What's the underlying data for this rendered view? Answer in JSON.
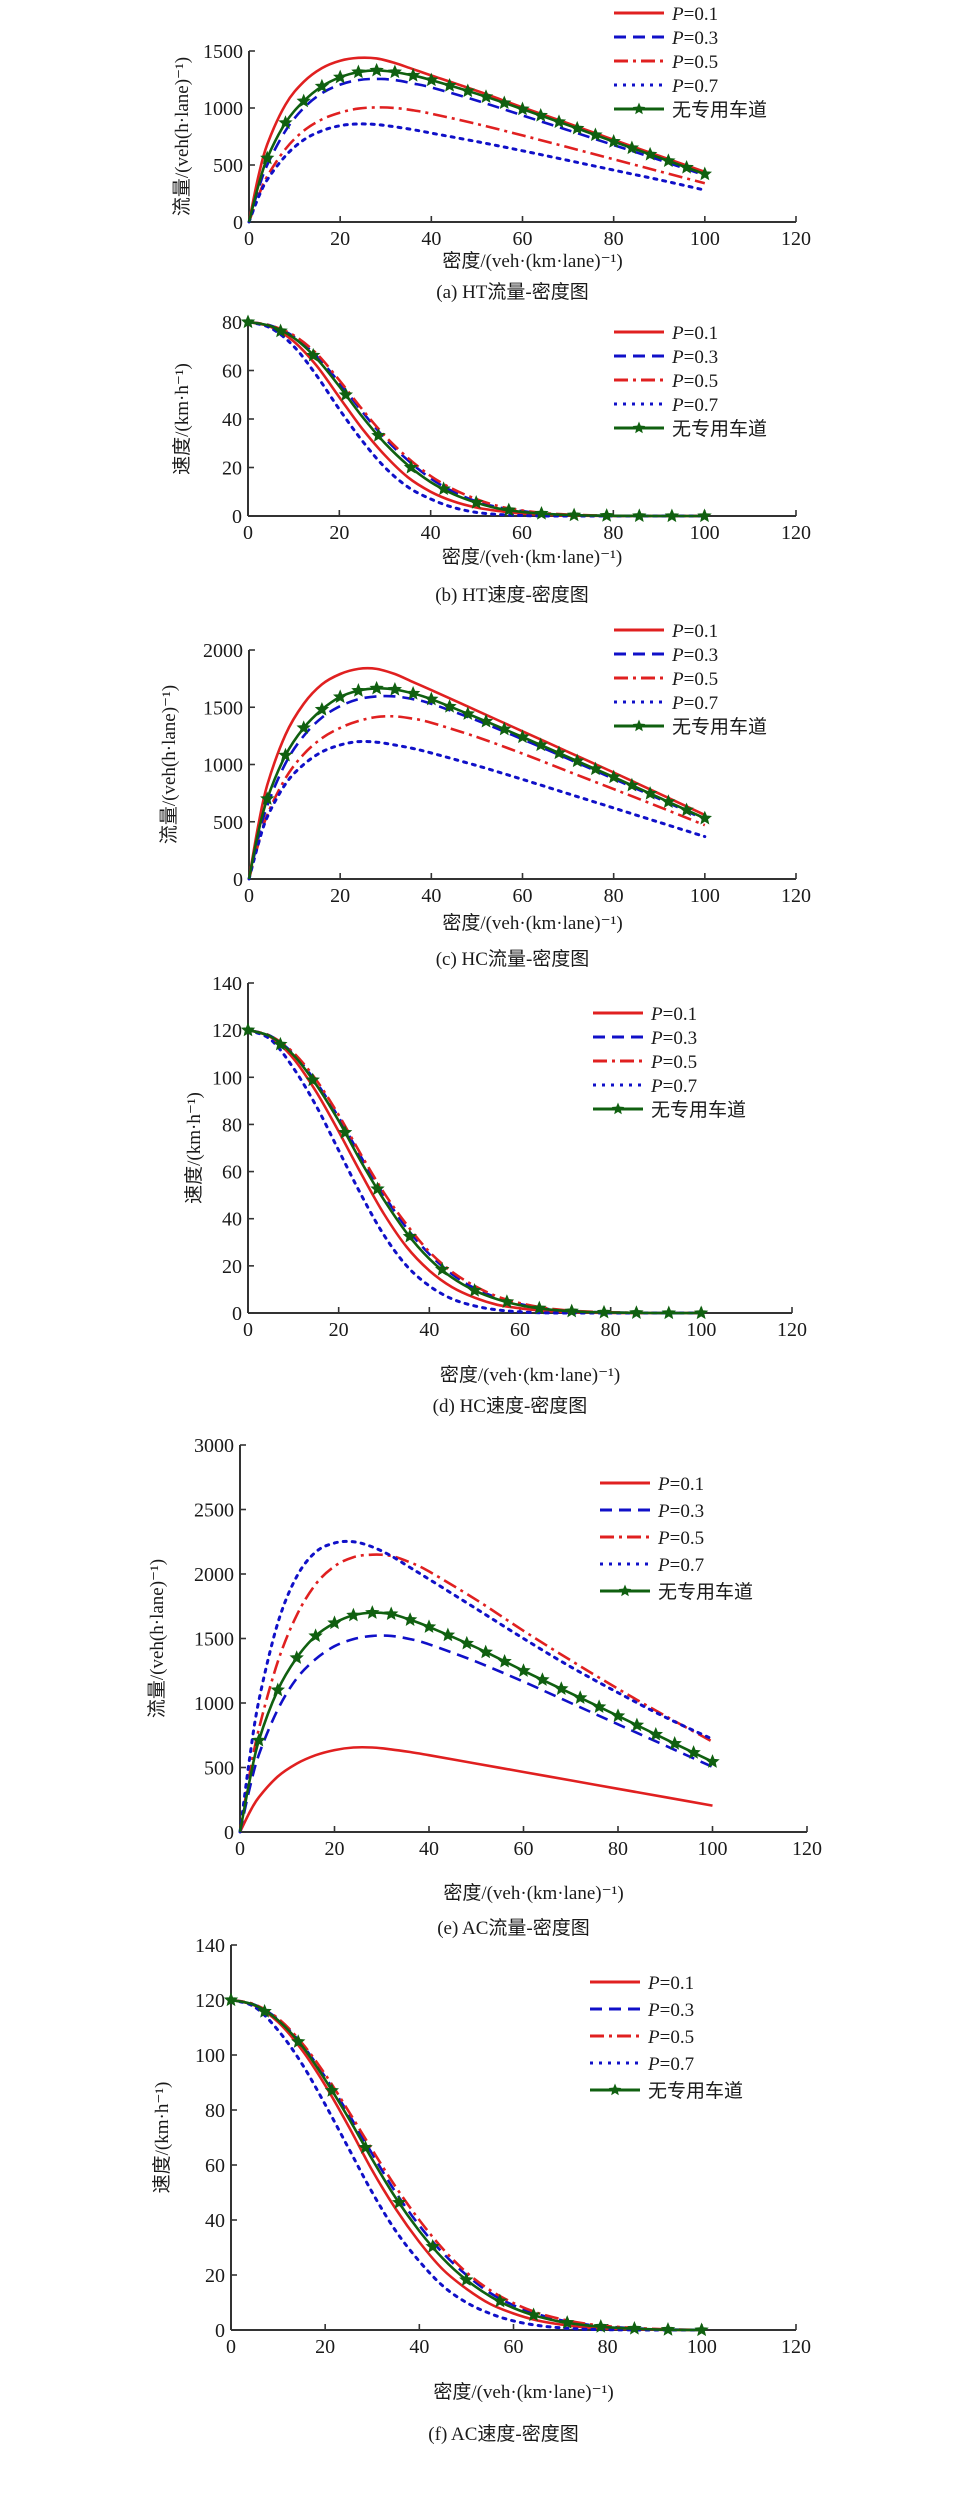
{
  "series_styles": [
    {
      "key": "p01",
      "name": "P=0.1",
      "color": "#e02020",
      "dash": "solid"
    },
    {
      "key": "p03",
      "name": "P=0.3",
      "color": "#1010c8",
      "dash": "dash"
    },
    {
      "key": "p05",
      "name": "P=0.5",
      "color": "#e02020",
      "dash": "dashdot"
    },
    {
      "key": "p07",
      "name": "P=0.7",
      "color": "#1010c8",
      "dash": "dot"
    },
    {
      "key": "none",
      "name": "无专用车道",
      "color": "#106010",
      "dash": "solid-star"
    }
  ],
  "chart_data": [
    {
      "id": "a",
      "type": "line",
      "title": "(a) HT流量-密度图",
      "xlabel": "密度/(veh·(km·lane)⁻¹)",
      "ylabel": "流量/(veh(h·lane)⁻¹)",
      "xlim": [
        0,
        120
      ],
      "ylim": [
        0,
        1500
      ],
      "xticks": [
        0,
        20,
        40,
        60,
        80,
        100,
        120
      ],
      "yticks": [
        0,
        500,
        1000,
        1500
      ],
      "legend_position": "top-right",
      "grid": false,
      "x": [
        0,
        2,
        4,
        8,
        12,
        16,
        20,
        24,
        28,
        32,
        36,
        40,
        50,
        60,
        70,
        80,
        90,
        100
      ],
      "series": [
        {
          "name": "P=0.1",
          "values": [
            0,
            390,
            680,
            1030,
            1230,
            1350,
            1415,
            1440,
            1435,
            1395,
            1340,
            1285,
            1150,
            1005,
            865,
            720,
            580,
            440
          ]
        },
        {
          "name": "P=0.3",
          "values": [
            0,
            280,
            500,
            800,
            1000,
            1130,
            1205,
            1245,
            1255,
            1245,
            1215,
            1180,
            1065,
            935,
            805,
            675,
            545,
            410
          ]
        },
        {
          "name": "P=0.5",
          "values": [
            0,
            220,
            400,
            640,
            800,
            900,
            960,
            995,
            1005,
            1000,
            980,
            950,
            860,
            760,
            655,
            550,
            445,
            340
          ]
        },
        {
          "name": "P=0.7",
          "values": [
            0,
            210,
            370,
            580,
            720,
            800,
            845,
            860,
            855,
            835,
            810,
            780,
            705,
            625,
            540,
            455,
            370,
            280
          ]
        },
        {
          "name": "无专用车道",
          "values": [
            0,
            310,
            560,
            870,
            1060,
            1190,
            1270,
            1315,
            1330,
            1315,
            1285,
            1245,
            1125,
            990,
            850,
            705,
            565,
            420
          ]
        }
      ]
    },
    {
      "id": "b",
      "type": "line",
      "title": "(b) HT速度-密度图",
      "xlabel": "密度/(veh·(km·lane)⁻¹)",
      "ylabel": "速度/(km·h⁻¹)",
      "xlim": [
        0,
        120
      ],
      "ylim": [
        0,
        80
      ],
      "xticks": [
        0,
        20,
        40,
        60,
        80,
        100,
        120
      ],
      "yticks": [
        0,
        20,
        40,
        60,
        80
      ],
      "legend_position": "top-right",
      "grid": false,
      "x": [
        0,
        5,
        10,
        15,
        20,
        25,
        30,
        35,
        40,
        45,
        50,
        55,
        60,
        65,
        70,
        75,
        80,
        90,
        100
      ],
      "series": [
        {
          "name": "P=0.1",
          "values": [
            80,
            78,
            72,
            62,
            49,
            36,
            25,
            16,
            10,
            6,
            3.5,
            2,
            1,
            0.5,
            0.2,
            0.1,
            0,
            0,
            0
          ]
        },
        {
          "name": "P=0.3",
          "values": [
            80,
            78.5,
            74,
            66,
            55,
            43,
            32,
            23,
            15.5,
            10,
            6,
            3.5,
            2,
            1,
            0.5,
            0.2,
            0.1,
            0,
            0
          ]
        },
        {
          "name": "P=0.5",
          "values": [
            80,
            78.5,
            74.5,
            67,
            56,
            44,
            33,
            24,
            16.5,
            11,
            7,
            4,
            2.3,
            1.2,
            0.6,
            0.3,
            0.1,
            0,
            0
          ]
        },
        {
          "name": "P=0.7",
          "values": [
            80,
            77.5,
            70,
            58,
            44,
            31,
            20,
            12,
            7,
            3.5,
            1.5,
            0.6,
            0.2,
            0,
            0,
            0,
            0,
            0,
            0
          ]
        },
        {
          "name": "无专用车道",
          "values": [
            80,
            78.3,
            73.5,
            65,
            53.5,
            41,
            30,
            21,
            14,
            9,
            5.5,
            3,
            1.7,
            0.9,
            0.4,
            0.2,
            0.1,
            0,
            0
          ]
        }
      ]
    },
    {
      "id": "c",
      "type": "line",
      "title": "(c) HC流量-密度图",
      "xlabel": "密度/(veh·(km·lane)⁻¹)",
      "ylabel": "流量/(veh(h·lane)⁻¹)",
      "xlim": [
        0,
        120
      ],
      "ylim": [
        0,
        2000
      ],
      "xticks": [
        0,
        20,
        40,
        60,
        80,
        100,
        120
      ],
      "yticks": [
        0,
        500,
        1000,
        1500,
        2000
      ],
      "legend_position": "top-right",
      "grid": false,
      "x": [
        0,
        2,
        4,
        8,
        12,
        16,
        20,
        24,
        28,
        32,
        36,
        40,
        50,
        60,
        70,
        80,
        90,
        100
      ],
      "series": [
        {
          "name": "P=0.1",
          "values": [
            0,
            460,
            820,
            1260,
            1530,
            1700,
            1790,
            1835,
            1835,
            1790,
            1720,
            1650,
            1470,
            1290,
            1110,
            930,
            745,
            560
          ]
        },
        {
          "name": "P=0.3",
          "values": [
            0,
            350,
            640,
            1010,
            1250,
            1410,
            1510,
            1570,
            1595,
            1595,
            1570,
            1530,
            1385,
            1220,
            1050,
            875,
            700,
            520
          ]
        },
        {
          "name": "P=0.5",
          "values": [
            0,
            300,
            560,
            880,
            1090,
            1230,
            1320,
            1380,
            1415,
            1420,
            1400,
            1365,
            1240,
            1095,
            940,
            785,
            630,
            470
          ]
        },
        {
          "name": "P=0.7",
          "values": [
            0,
            300,
            540,
            830,
            1000,
            1110,
            1170,
            1200,
            1195,
            1170,
            1140,
            1100,
            990,
            870,
            745,
            620,
            495,
            370
          ]
        },
        {
          "name": "无专用车道",
          "values": [
            0,
            400,
            700,
            1080,
            1320,
            1480,
            1590,
            1645,
            1665,
            1655,
            1620,
            1570,
            1410,
            1240,
            1065,
            890,
            710,
            530
          ]
        }
      ]
    },
    {
      "id": "d",
      "type": "line",
      "title": "(d) HC速度-密度图",
      "xlabel": "密度/(veh·(km·lane)⁻¹)",
      "ylabel": "速度/(km·h⁻¹)",
      "xlim": [
        0,
        120
      ],
      "ylim": [
        0,
        140
      ],
      "xticks": [
        0,
        20,
        40,
        60,
        80,
        100,
        120
      ],
      "yticks": [
        0,
        20,
        40,
        60,
        80,
        100,
        120,
        140
      ],
      "legend_position": "top-right",
      "grid": false,
      "x": [
        0,
        5,
        10,
        15,
        20,
        25,
        30,
        35,
        40,
        45,
        50,
        55,
        60,
        65,
        70,
        75,
        80,
        90,
        100
      ],
      "series": [
        {
          "name": "P=0.1",
          "values": [
            120,
            117,
            108,
            94,
            77,
            59,
            42,
            28,
            18,
            11,
            6.5,
            3.5,
            2,
            1,
            0.4,
            0.2,
            0,
            0,
            0
          ]
        },
        {
          "name": "P=0.3",
          "values": [
            120,
            117.5,
            110,
            98,
            83,
            66,
            50,
            36,
            25,
            16.5,
            10.5,
            6.5,
            3.8,
            2,
            1,
            0.5,
            0.2,
            0,
            0
          ]
        },
        {
          "name": "P=0.5",
          "values": [
            120,
            117.5,
            110.5,
            99,
            84,
            67,
            51,
            37.5,
            26,
            17.5,
            11.5,
            7,
            4.2,
            2.3,
            1.2,
            0.6,
            0.3,
            0,
            0
          ]
        },
        {
          "name": "P=0.7",
          "values": [
            120,
            116,
            104,
            88,
            69,
            50,
            33,
            20,
            11.5,
            6,
            3,
            1.3,
            0.5,
            0.1,
            0,
            0,
            0,
            0,
            0
          ]
        },
        {
          "name": "无专用车道",
          "values": [
            120,
            117.3,
            109.5,
            97,
            81.5,
            64,
            48,
            34,
            23,
            15,
            9.5,
            5.8,
            3.3,
            1.8,
            0.9,
            0.4,
            0.2,
            0,
            0
          ]
        }
      ]
    },
    {
      "id": "e",
      "type": "line",
      "title": "(e) AC流量-密度图",
      "xlabel": "密度/(veh·(km·lane)⁻¹)",
      "ylabel": "流量/(veh(h·lane)⁻¹)",
      "xlim": [
        0,
        120
      ],
      "ylim": [
        0,
        3000
      ],
      "xticks": [
        0,
        20,
        40,
        60,
        80,
        100,
        120
      ],
      "yticks": [
        0,
        500,
        1000,
        1500,
        2000,
        2500,
        3000
      ],
      "legend_position": "top-right",
      "grid": false,
      "x": [
        0,
        2,
        4,
        8,
        12,
        16,
        20,
        24,
        28,
        32,
        36,
        40,
        50,
        60,
        70,
        80,
        90,
        100
      ],
      "series": [
        {
          "name": "P=0.1",
          "values": [
            0,
            150,
            270,
            430,
            530,
            595,
            635,
            655,
            655,
            640,
            620,
            595,
            530,
            465,
            400,
            335,
            270,
            205
          ]
        },
        {
          "name": "P=0.3",
          "values": [
            0,
            330,
            600,
            950,
            1190,
            1340,
            1440,
            1495,
            1520,
            1520,
            1495,
            1455,
            1320,
            1165,
            1000,
            835,
            670,
            505
          ]
        },
        {
          "name": "P=0.5",
          "values": [
            0,
            440,
            800,
            1320,
            1680,
            1920,
            2060,
            2130,
            2150,
            2140,
            2090,
            2020,
            1800,
            1560,
            1330,
            1110,
            900,
            700
          ]
        },
        {
          "name": "P=0.7",
          "values": [
            0,
            560,
            1020,
            1620,
            1980,
            2170,
            2240,
            2250,
            2210,
            2140,
            2050,
            1960,
            1730,
            1500,
            1280,
            1080,
            890,
            720
          ]
        },
        {
          "name": "无专用车道",
          "values": [
            0,
            390,
            710,
            1100,
            1350,
            1520,
            1620,
            1680,
            1700,
            1690,
            1645,
            1590,
            1430,
            1250,
            1075,
            900,
            720,
            545
          ]
        }
      ]
    },
    {
      "id": "f",
      "type": "line",
      "title": "(f) AC速度-密度图",
      "xlabel": "密度/(veh·(km·lane)⁻¹)",
      "ylabel": "速度/(km·h⁻¹)",
      "xlim": [
        0,
        120
      ],
      "ylim": [
        0,
        140
      ],
      "xticks": [
        0,
        20,
        40,
        60,
        80,
        100,
        120
      ],
      "yticks": [
        0,
        20,
        40,
        60,
        80,
        100,
        120,
        140
      ],
      "legend_position": "top-right",
      "grid": false,
      "x": [
        0,
        5,
        10,
        15,
        20,
        25,
        30,
        35,
        40,
        45,
        50,
        55,
        60,
        65,
        70,
        75,
        80,
        90,
        100
      ],
      "series": [
        {
          "name": "P=0.1",
          "values": [
            120,
            118,
            112,
            102,
            89,
            74,
            58,
            44,
            32,
            22,
            15,
            9.5,
            6,
            3.5,
            2,
            1,
            0.5,
            0.1,
            0
          ]
        },
        {
          "name": "P=0.3",
          "values": [
            120,
            118.3,
            113,
            104,
            92,
            78.5,
            64,
            50,
            38,
            28,
            20,
            13.5,
            9,
            5.8,
            3.6,
            2.1,
            1.2,
            0.3,
            0
          ]
        },
        {
          "name": "P=0.5",
          "values": [
            120,
            118.4,
            113.3,
            104.5,
            93,
            79.5,
            65.5,
            52,
            40,
            29.5,
            21,
            14.5,
            9.8,
            6.3,
            4,
            2.4,
            1.4,
            0.4,
            0
          ]
        },
        {
          "name": "P=0.7",
          "values": [
            120,
            117.5,
            109,
            97,
            82,
            66,
            50,
            36,
            25,
            16,
            10,
            6,
            3.3,
            1.7,
            0.8,
            0.3,
            0.1,
            0,
            0
          ]
        },
        {
          "name": "无专用车道",
          "values": [
            120,
            118.2,
            112.6,
            103.5,
            91,
            77,
            62,
            48,
            36,
            26,
            18.2,
            12.3,
            8,
            5,
            3,
            1.8,
            1,
            0.2,
            0
          ]
        }
      ]
    }
  ]
}
